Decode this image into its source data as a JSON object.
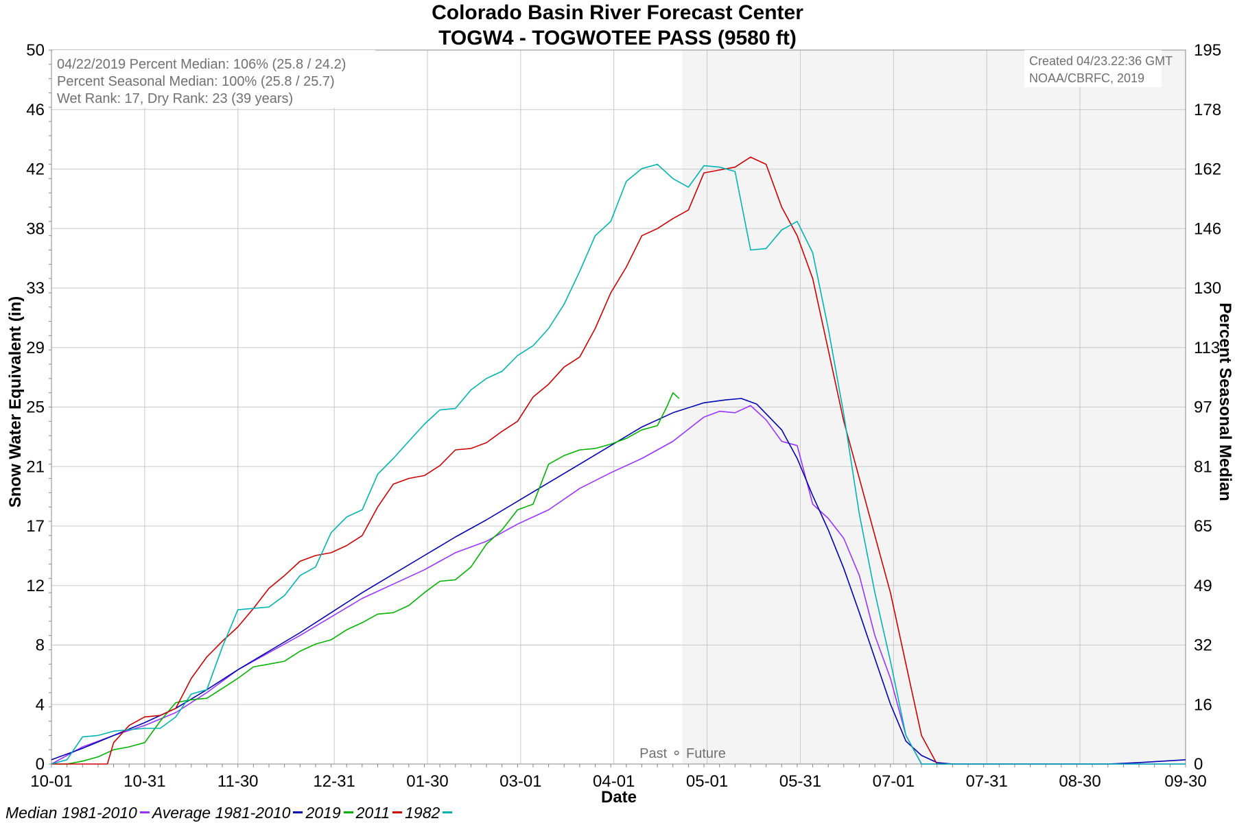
{
  "chart_data": {
    "type": "line",
    "title": "Colorado Basin River Forecast Center",
    "subtitle": "TOGW4 - TOGWOTEE PASS (9580 ft)",
    "xlabel": "Date",
    "ylabel": "Snow Water Equivalent (in)",
    "y2label": "Percent Seasonal Median",
    "ylim": [
      0,
      50
    ],
    "xlim_days": [
      0,
      365
    ],
    "yticks": [
      "0",
      "4",
      "8",
      "12",
      "17",
      "21",
      "25",
      "29",
      "33",
      "38",
      "42",
      "46",
      "50"
    ],
    "y2ticks": [
      "0",
      "16",
      "32",
      "49",
      "65",
      "81",
      "97",
      "113",
      "130",
      "146",
      "162",
      "178",
      "195"
    ],
    "xticks": [
      "10-01",
      "10-31",
      "11-30",
      "12-31",
      "01-30",
      "03-01",
      "04-01",
      "05-01",
      "05-31",
      "07-01",
      "07-31",
      "08-30",
      "09-30"
    ],
    "x_unit": "days since 10-01",
    "past_future_split_day": 203,
    "past_future_label": "Past ⚬ Future",
    "info_lines": [
      "04/22/2019 Percent Median: 106% (25.8 / 24.2)",
      "Percent Seasonal Median: 100% (25.8 / 25.7)",
      "Wet Rank: 17, Dry Rank: 23  (39 years)"
    ],
    "credit_lines": [
      "Created 04/23.22:36 GMT",
      "NOAA/CBRFC, 2019"
    ],
    "series": [
      {
        "name": "Median 1981-2010",
        "color": "#9933ff",
        "x": [
          0,
          10,
          20,
          30,
          40,
          50,
          60,
          70,
          80,
          90,
          100,
          110,
          120,
          130,
          140,
          150,
          160,
          170,
          180,
          190,
          200,
          210,
          215,
          220,
          225,
          230,
          235,
          240,
          245,
          250,
          255,
          260,
          265,
          270,
          275,
          280,
          285,
          290,
          295,
          300,
          365
        ],
        "y": [
          0,
          1.2,
          2.0,
          2.7,
          3.6,
          5.0,
          6.6,
          7.8,
          9.0,
          10.3,
          11.6,
          12.6,
          13.6,
          14.8,
          15.6,
          16.8,
          17.8,
          19.3,
          20.4,
          21.4,
          22.6,
          24.3,
          24.7,
          24.6,
          25.1,
          24.1,
          22.6,
          22.3,
          18.2,
          17.2,
          15.8,
          13.2,
          9.0,
          6.0,
          2.0,
          0,
          0,
          0,
          0,
          0,
          0
        ]
      },
      {
        "name": "Average 1981-2010",
        "color": "#0000b3",
        "x": [
          0,
          10,
          20,
          30,
          40,
          50,
          60,
          70,
          80,
          90,
          100,
          110,
          120,
          130,
          140,
          150,
          160,
          170,
          180,
          190,
          200,
          210,
          217,
          222,
          227,
          235,
          240,
          245,
          250,
          255,
          260,
          265,
          270,
          275,
          280,
          285,
          290,
          300,
          330,
          340,
          350,
          365
        ],
        "y": [
          0.3,
          1.1,
          2.0,
          2.9,
          3.9,
          5.2,
          6.6,
          7.9,
          9.2,
          10.6,
          12.0,
          13.3,
          14.6,
          15.9,
          17.1,
          18.4,
          19.7,
          21.0,
          22.3,
          23.6,
          24.6,
          25.3,
          25.5,
          25.6,
          25.2,
          23.4,
          21.4,
          18.8,
          16.4,
          13.7,
          10.6,
          7.4,
          4.2,
          1.6,
          0.6,
          0.1,
          0,
          0,
          0,
          0,
          0.1,
          0.3
        ]
      },
      {
        "name": "2019",
        "color": "#00b300",
        "x": [
          0,
          5,
          10,
          15,
          20,
          25,
          30,
          35,
          40,
          45,
          50,
          55,
          60,
          65,
          70,
          75,
          80,
          85,
          90,
          95,
          100,
          105,
          110,
          115,
          120,
          125,
          130,
          135,
          140,
          145,
          150,
          155,
          160,
          165,
          170,
          175,
          180,
          185,
          190,
          195,
          198,
          200,
          202
        ],
        "y": [
          0,
          0,
          0.2,
          0.5,
          1.0,
          1.2,
          1.5,
          3.0,
          4.3,
          4.5,
          4.6,
          5.3,
          6.0,
          6.8,
          7.0,
          7.2,
          7.9,
          8.4,
          8.7,
          9.4,
          9.9,
          10.5,
          10.6,
          11.1,
          12.0,
          12.8,
          12.9,
          13.8,
          15.4,
          16.4,
          17.8,
          18.2,
          21.0,
          21.6,
          22.0,
          22.1,
          22.4,
          22.8,
          23.4,
          23.7,
          25.0,
          26.0,
          25.6
        ]
      },
      {
        "name": "2011",
        "color": "#cc0000",
        "x": [
          0,
          10,
          15,
          18,
          20,
          25,
          30,
          35,
          40,
          45,
          50,
          55,
          60,
          65,
          70,
          75,
          80,
          85,
          90,
          95,
          100,
          105,
          110,
          115,
          120,
          125,
          130,
          135,
          140,
          145,
          150,
          155,
          160,
          165,
          170,
          175,
          180,
          185,
          190,
          195,
          200,
          205,
          210,
          215,
          220,
          225,
          230,
          235,
          240,
          245,
          250,
          255,
          260,
          265,
          270,
          275,
          280,
          285,
          288
        ],
        "y": [
          0,
          0,
          0,
          0,
          1.5,
          2.7,
          3.3,
          3.4,
          3.9,
          6.0,
          7.5,
          8.6,
          9.6,
          10.9,
          12.3,
          13.2,
          14.2,
          14.6,
          14.8,
          15.3,
          16.0,
          18.0,
          19.6,
          20.0,
          20.2,
          20.9,
          22.0,
          22.1,
          22.5,
          23.3,
          24.0,
          25.7,
          26.6,
          27.8,
          28.5,
          30.5,
          33.0,
          34.8,
          37.0,
          37.5,
          38.2,
          38.8,
          41.4,
          41.6,
          41.8,
          42.5,
          42.0,
          39.0,
          37.0,
          34.0,
          29.0,
          24.0,
          20.0,
          16.0,
          12.0,
          7.0,
          2.0,
          0,
          0
        ]
      },
      {
        "name": "1982",
        "color": "#00b3b3",
        "x": [
          0,
          5,
          10,
          15,
          20,
          25,
          30,
          35,
          40,
          45,
          50,
          55,
          60,
          65,
          70,
          75,
          80,
          85,
          90,
          95,
          100,
          105,
          110,
          115,
          120,
          125,
          130,
          135,
          140,
          145,
          150,
          155,
          160,
          165,
          170,
          175,
          180,
          185,
          190,
          195,
          200,
          205,
          210,
          215,
          220,
          225,
          230,
          235,
          240,
          245,
          250,
          255,
          260,
          265,
          270,
          275,
          280,
          283,
          290,
          300,
          365
        ],
        "y": [
          0,
          0.3,
          1.9,
          2.0,
          2.3,
          2.4,
          2.5,
          2.5,
          3.3,
          4.9,
          5.2,
          8.2,
          10.8,
          10.9,
          11.0,
          11.8,
          13.2,
          13.8,
          16.2,
          17.3,
          17.8,
          20.3,
          21.4,
          22.6,
          23.8,
          24.8,
          24.9,
          26.2,
          27.0,
          27.5,
          28.6,
          29.3,
          30.5,
          32.2,
          34.5,
          37.0,
          38.0,
          40.8,
          41.7,
          42.0,
          41.0,
          40.4,
          41.9,
          41.8,
          41.5,
          36.0,
          36.1,
          37.4,
          38.0,
          35.8,
          30.5,
          24.5,
          17.5,
          12.0,
          7.2,
          2.0,
          0,
          0,
          0,
          0,
          0
        ]
      }
    ]
  }
}
